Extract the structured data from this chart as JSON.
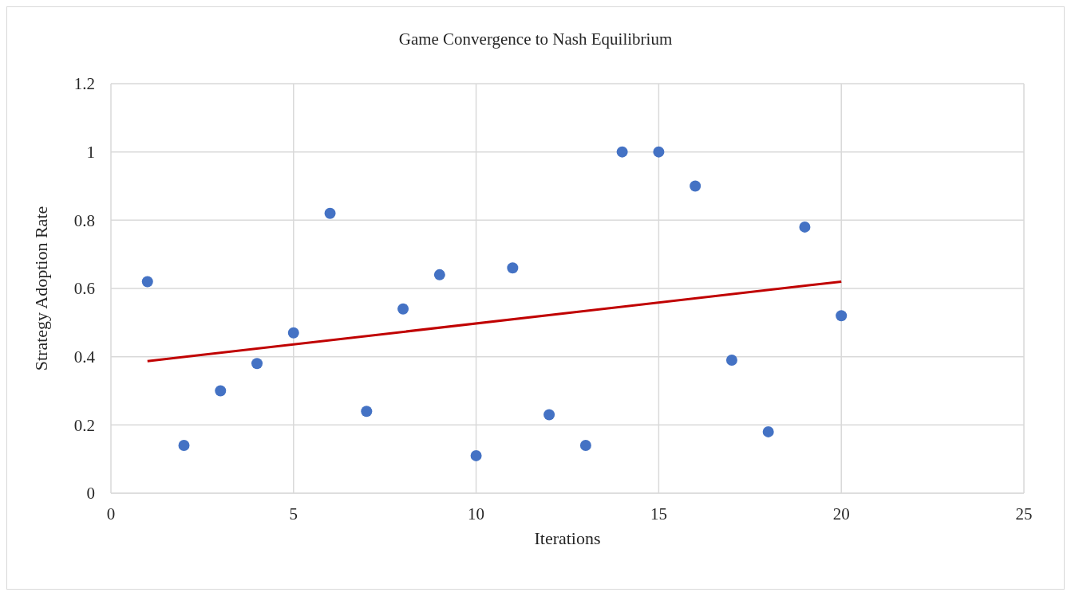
{
  "chart_data": {
    "type": "scatter",
    "title": "Game Convergence to Nash Equilibrium",
    "xlabel": "Iterations",
    "ylabel": "Strategy Adoption Rate",
    "xlim": [
      0,
      25
    ],
    "xticks": [
      0,
      5,
      10,
      15,
      20,
      25
    ],
    "ylim": [
      0,
      1.2
    ],
    "yticks": [
      0,
      0.2,
      0.4,
      0.6,
      0.8,
      1,
      1.2
    ],
    "grid": true,
    "series": [
      {
        "type": "scatter",
        "color": "#4472c4",
        "marker": "circle",
        "x": [
          1,
          2,
          3,
          4,
          5,
          6,
          7,
          8,
          9,
          10,
          11,
          12,
          13,
          14,
          15,
          16,
          17,
          18,
          19,
          20
        ],
        "values": [
          0.62,
          0.14,
          0.3,
          0.38,
          0.47,
          0.82,
          0.24,
          0.54,
          0.64,
          0.11,
          0.66,
          0.23,
          0.14,
          1,
          1,
          0.9,
          0.39,
          0.18,
          0.78,
          0.52
        ]
      },
      {
        "type": "line",
        "color": "#c00000",
        "marker": "none",
        "line_style": "solid",
        "x": [
          1,
          20
        ],
        "values": [
          0.387,
          0.62
        ]
      }
    ]
  }
}
